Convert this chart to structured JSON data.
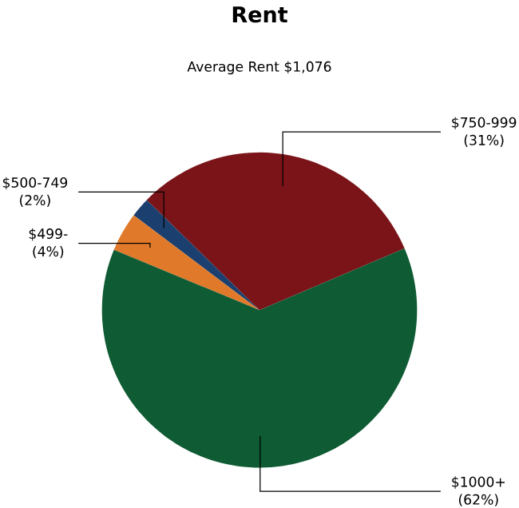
{
  "chart_data": {
    "type": "pie",
    "title": "Rent",
    "subtitle": "Average Rent  $1,076",
    "categories": [
      "$750-999",
      "$500-749",
      "$499-",
      "$1000+"
    ],
    "values": [
      31,
      2,
      4,
      62
    ],
    "value_labels": [
      "(31%)",
      "(2%)",
      "(4%)",
      "(62%)"
    ],
    "colors": [
      "#7a1419",
      "#1b3f6e",
      "#e07a2a",
      "#0f5b34"
    ]
  }
}
